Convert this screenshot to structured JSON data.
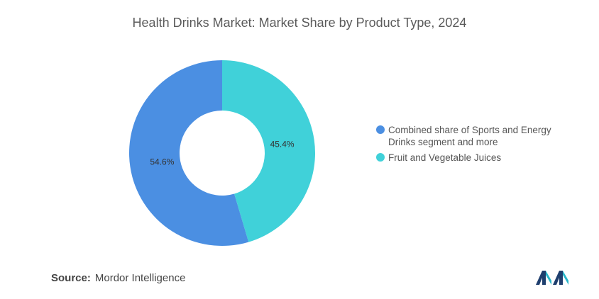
{
  "chart_data": {
    "type": "pie",
    "title": "Health Drinks Market: Market Share by Product Type, 2024",
    "categories": [
      "Combined share of Sports and Energy Drinks segment and more",
      "Fruit and Vegetable Juices"
    ],
    "values": [
      54.6,
      45.4
    ],
    "data_labels": [
      "54.6%",
      "45.4%"
    ],
    "colors": [
      "#4b8fe2",
      "#40d1d9"
    ],
    "style": "donut",
    "legend_position": "right"
  },
  "source": {
    "label": "Source:",
    "text": "Mordor Intelligence"
  },
  "logo": {
    "colors": [
      "#1f3f6e",
      "#29b6c9"
    ]
  }
}
